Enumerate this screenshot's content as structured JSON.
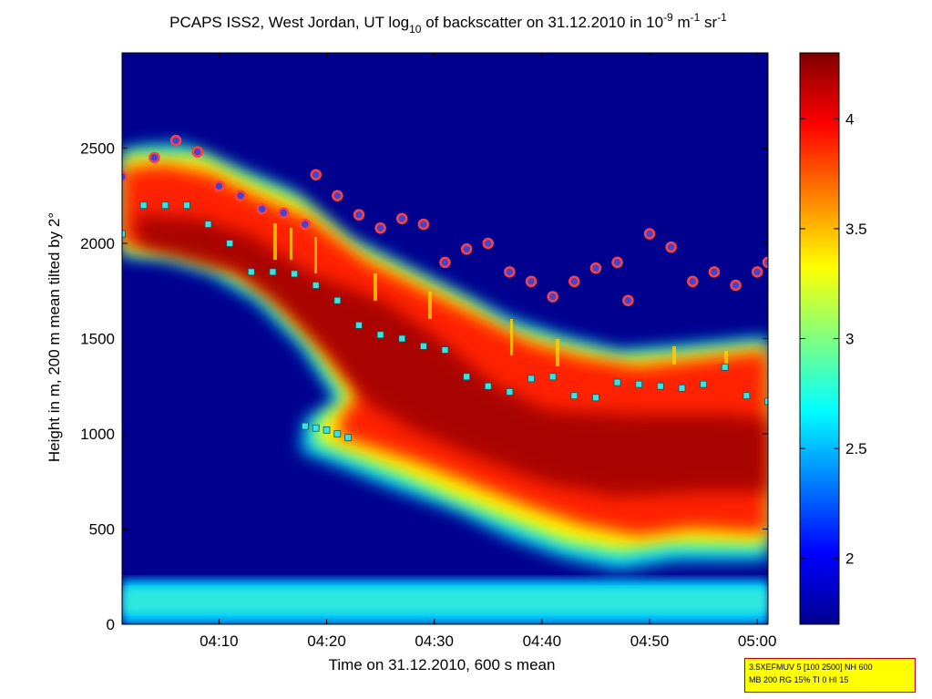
{
  "chart_data": {
    "type": "heatmap",
    "title": {
      "prefix": "PCAPS ISS2, West Jordan, UT log",
      "sub": "10",
      "middle": " of backscatter on 31.12.2010 in 10",
      "exp1": "-9",
      "unit1": " m",
      "exp2": "-1",
      "unit2": " sr",
      "exp3": "-1"
    },
    "xlabel": "Time on 31.12.2010, 600 s mean",
    "ylabel": "Height in m, 200 m mean tilted by 2°",
    "x_tick_labels": [
      "04:10",
      "04:20",
      "04:30",
      "04:40",
      "04:50",
      "05:00"
    ],
    "x_range": [
      "04:01",
      "05:01"
    ],
    "y_ticks": [
      0,
      500,
      1000,
      1500,
      2000,
      2500
    ],
    "ylim": [
      0,
      3000
    ],
    "colorbar": {
      "ticks": [
        2,
        2.5,
        3,
        3.5,
        4
      ],
      "range": [
        1.7,
        4.3
      ],
      "colormap": "jet"
    },
    "colors": {
      "background": "#00008f",
      "cloud_base_marker": "#40e0e0",
      "cloud_top_marker": "#ffffff",
      "circle_marker_fill": "#4444cc",
      "circle_marker_edge": "#ffffff"
    },
    "aerosol_layer_top": {
      "name": "upper layer top (circles)",
      "x_minutes": [
        1,
        4,
        6,
        8,
        10,
        12,
        14,
        16,
        18,
        19,
        21,
        23,
        25,
        27,
        29,
        31,
        33,
        35,
        37,
        39,
        41,
        43,
        45,
        47,
        48,
        50,
        52,
        54,
        56,
        58,
        60,
        61
      ],
      "y": [
        2350,
        2450,
        2540,
        2480,
        2300,
        2250,
        2180,
        2160,
        2100,
        2360,
        2250,
        2150,
        2080,
        2130,
        2100,
        1900,
        1970,
        2000,
        1850,
        1800,
        1720,
        1800,
        1870,
        1900,
        1700,
        2050,
        1980,
        1800,
        1850,
        1780,
        1850,
        1900
      ]
    },
    "cloud_base": {
      "name": "cloud base (cyan squares)",
      "x_minutes": [
        1,
        3,
        5,
        7,
        9,
        11,
        13,
        15,
        17,
        19,
        21,
        23,
        25,
        27,
        29,
        31,
        33,
        35,
        37,
        39,
        41,
        43,
        45,
        47,
        49,
        51,
        53,
        55,
        57,
        59,
        61
      ],
      "y": [
        2050,
        2200,
        2200,
        2200,
        2100,
        2000,
        1850,
        1850,
        1840,
        1780,
        1700,
        1570,
        1520,
        1500,
        1460,
        1440,
        1300,
        1250,
        1220,
        1290,
        1300,
        1200,
        1190,
        1270,
        1260,
        1250,
        1240,
        1260,
        1350,
        1200,
        1170
      ]
    },
    "lower_layer": {
      "name": "lower layer (cyan squares)",
      "x_minutes": [
        18,
        19,
        20,
        21,
        22
      ],
      "y": [
        1040,
        1030,
        1020,
        1000,
        980
      ]
    },
    "annotation": {
      "line1": "3.5XEFMUV 5 [100 2500] NH 600",
      "line2": "MB 200 RG 15% TI 0 HI 15"
    }
  }
}
